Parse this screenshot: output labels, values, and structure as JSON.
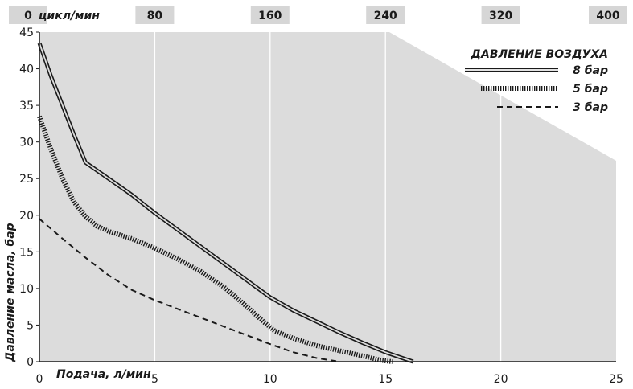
{
  "chart_data": {
    "type": "line",
    "xlabel": "Подача, л/мин",
    "ylabel": "Давление масла, бар",
    "xlim": [
      0,
      25
    ],
    "ylim": [
      0,
      45
    ],
    "x_ticks": [
      0,
      5,
      10,
      15,
      20,
      25
    ],
    "y_ticks": [
      0,
      5,
      10,
      15,
      20,
      25,
      30,
      35,
      40,
      45
    ],
    "top_axis": {
      "label": "цикл/мин",
      "ticks": [
        "0",
        "80",
        "160",
        "240",
        "320",
        "400"
      ]
    },
    "grid": true,
    "legend": {
      "title": "ДАВЛЕНИЕ ВОЗДУХА",
      "placement": "top-right"
    },
    "series": [
      {
        "name": "8 бар",
        "style": "double",
        "points": [
          [
            0,
            43.5
          ],
          [
            0.5,
            39
          ],
          [
            1,
            35
          ],
          [
            1.5,
            31
          ],
          [
            2,
            27.2
          ],
          [
            3,
            25
          ],
          [
            4,
            22.8
          ],
          [
            5,
            20.3
          ],
          [
            6,
            18
          ],
          [
            7,
            15.7
          ],
          [
            8,
            13.4
          ],
          [
            9,
            11.1
          ],
          [
            10,
            8.8
          ],
          [
            11,
            7
          ],
          [
            12,
            5.5
          ],
          [
            13,
            4
          ],
          [
            14,
            2.6
          ],
          [
            15,
            1.3
          ],
          [
            16.2,
            0
          ]
        ]
      },
      {
        "name": "5 бар",
        "style": "hatched",
        "points": [
          [
            0,
            33.5
          ],
          [
            0.5,
            29
          ],
          [
            1,
            25
          ],
          [
            1.5,
            21.8
          ],
          [
            2,
            19.8
          ],
          [
            2.5,
            18.5
          ],
          [
            3,
            17.8
          ],
          [
            4,
            16.8
          ],
          [
            5,
            15.5
          ],
          [
            6,
            14
          ],
          [
            7,
            12.3
          ],
          [
            8,
            10.2
          ],
          [
            9,
            7.5
          ],
          [
            9.7,
            5.5
          ],
          [
            10.2,
            4.2
          ],
          [
            11,
            3.2
          ],
          [
            12,
            2.2
          ],
          [
            13,
            1.5
          ],
          [
            14,
            0.8
          ],
          [
            14.8,
            0.2
          ],
          [
            15.3,
            0
          ]
        ]
      },
      {
        "name": "3 бар",
        "style": "dashed",
        "points": [
          [
            0,
            19.5
          ],
          [
            1,
            16.8
          ],
          [
            2,
            14.2
          ],
          [
            3,
            11.8
          ],
          [
            4,
            9.8
          ],
          [
            5,
            8.4
          ],
          [
            6,
            7.2
          ],
          [
            7,
            6
          ],
          [
            8,
            4.8
          ],
          [
            9,
            3.6
          ],
          [
            10,
            2.4
          ],
          [
            11,
            1.3
          ],
          [
            12,
            0.5
          ],
          [
            13,
            0
          ]
        ]
      }
    ]
  }
}
